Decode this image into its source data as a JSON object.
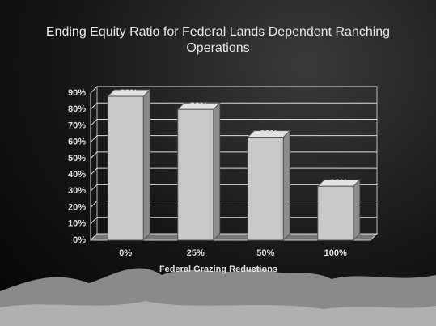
{
  "chart_data": {
    "type": "bar3d",
    "title": "Ending Equity Ratio for Federal Lands Dependent Ranching Operations",
    "x_label": "Federal Grazing Reductions",
    "categories": [
      "0%",
      "25%",
      "50%",
      "100%"
    ],
    "values": [
      88,
      80,
      63,
      33
    ],
    "value_labels": [
      "88%",
      "80%",
      "63%",
      "33%"
    ],
    "color": "#c9c9c9",
    "ylim": [
      0,
      90
    ],
    "yticks": [
      {
        "value": 0,
        "label": "0%"
      },
      {
        "value": 10,
        "label": "10%"
      },
      {
        "value": 20,
        "label": "20%"
      },
      {
        "value": 30,
        "label": "30%"
      },
      {
        "value": 40,
        "label": "40%"
      },
      {
        "value": 50,
        "label": "50%"
      },
      {
        "value": 60,
        "label": "60%"
      },
      {
        "value": 70,
        "label": "70%"
      },
      {
        "value": 80,
        "label": "80%"
      },
      {
        "value": 90,
        "label": "90%"
      }
    ],
    "grid": true
  }
}
